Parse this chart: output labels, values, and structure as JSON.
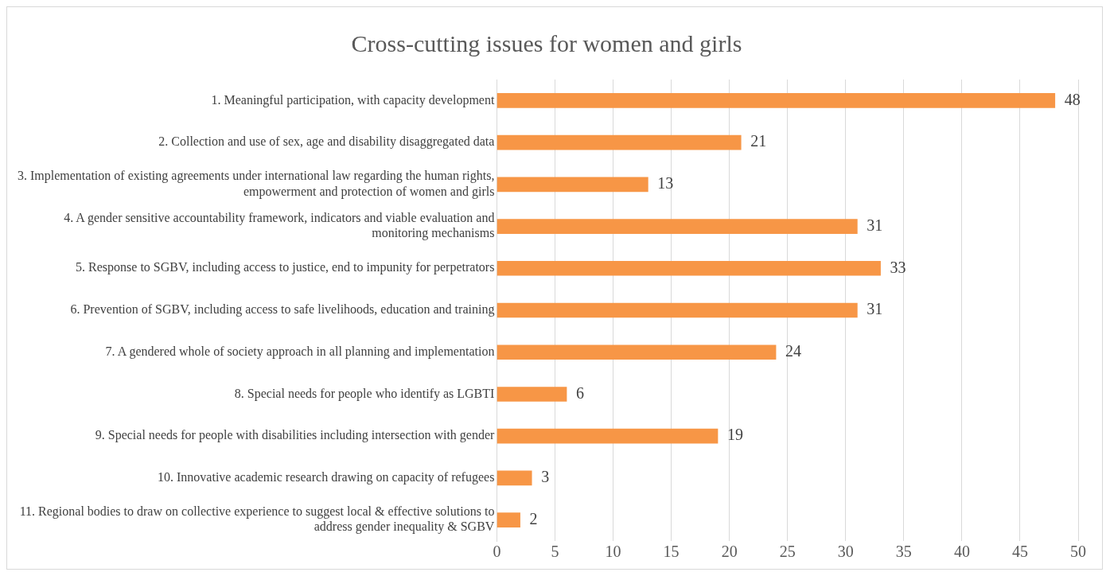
{
  "chart_data": {
    "type": "bar",
    "orientation": "horizontal",
    "title": "Cross-cutting issues for women and girls",
    "categories": [
      "1. Meaningful participation, with capacity development",
      "2. Collection and use of sex, age and disability disaggregated data",
      "3. Implementation of existing agreements under international law regarding the human rights, empowerment and protection of women and girls",
      "4. A gender sensitive accountability framework, indicators and viable evaluation and monitoring mechanisms",
      "5. Response to SGBV, including access to justice, end to impunity for perpetrators",
      "6. Prevention of SGBV, including access to safe livelihoods, education and training",
      "7. A gendered whole of society approach in all planning and implementation",
      "8. Special needs for people who identify as LGBTI",
      "9. Special needs for people with disabilities including intersection with gender",
      "10. Innovative academic research drawing on capacity of refugees",
      "11. Regional bodies to draw on collective experience to suggest local & effective solutions to address gender inequality & SGBV"
    ],
    "values": [
      48,
      21,
      13,
      31,
      33,
      31,
      24,
      6,
      19,
      3,
      2
    ],
    "color": "#f79646",
    "xlim": [
      0,
      50
    ],
    "xticks": [
      0,
      5,
      10,
      15,
      20,
      25,
      30,
      35,
      40,
      45,
      50
    ],
    "grid": "x",
    "legend": false,
    "data_labels": true
  }
}
